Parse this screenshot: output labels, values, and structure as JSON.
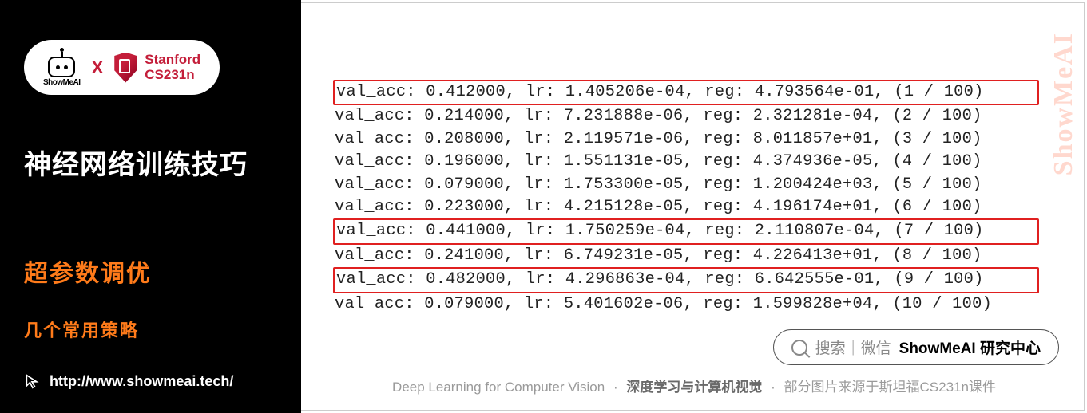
{
  "logo": {
    "ai_text": "ShowMeAI",
    "x": "X",
    "stanford_line1": "Stanford",
    "stanford_line2": "CS231n"
  },
  "sidebar": {
    "title": "神经网络训练技巧",
    "subtitle1": "超参数调优",
    "subtitle2": "几个常用策略",
    "url": "http://www.showmeai.tech/"
  },
  "console": {
    "lines": [
      {
        "text": "val_acc: 0.412000, lr: 1.405206e-04, reg: 4.793564e-01, (1 / 100)",
        "boxed": true
      },
      {
        "text": "val_acc: 0.214000, lr: 7.231888e-06, reg: 2.321281e-04, (2 / 100)",
        "boxed": false
      },
      {
        "text": "val_acc: 0.208000, lr: 2.119571e-06, reg: 8.011857e+01, (3 / 100)",
        "boxed": false
      },
      {
        "text": "val_acc: 0.196000, lr: 1.551131e-05, reg: 4.374936e-05, (4 / 100)",
        "boxed": false
      },
      {
        "text": "val_acc: 0.079000, lr: 1.753300e-05, reg: 1.200424e+03, (5 / 100)",
        "boxed": false
      },
      {
        "text": "val_acc: 0.223000, lr: 4.215128e-05, reg: 4.196174e+01, (6 / 100)",
        "boxed": false
      },
      {
        "text": "val_acc: 0.441000, lr: 1.750259e-04, reg: 2.110807e-04, (7 / 100)",
        "boxed": true
      },
      {
        "text": "val_acc: 0.241000, lr: 6.749231e-05, reg: 4.226413e+01, (8 / 100)",
        "boxed": false
      },
      {
        "text": "val_acc: 0.482000, lr: 4.296863e-04, reg: 6.642555e-01, (9 / 100)",
        "boxed": true
      },
      {
        "text": "val_acc: 0.079000, lr: 5.401602e-06, reg: 1.599828e+04, (10 / 100)",
        "boxed": false
      }
    ]
  },
  "search": {
    "gray": "搜索｜微信",
    "bold": "ShowMeAI 研究中心"
  },
  "footer": {
    "part1": "Deep Learning for Computer Vision",
    "part2": "深度学习与计算机视觉",
    "part3": "部分图片来源于斯坦福CS231n课件"
  },
  "watermark": "ShowMeAI"
}
